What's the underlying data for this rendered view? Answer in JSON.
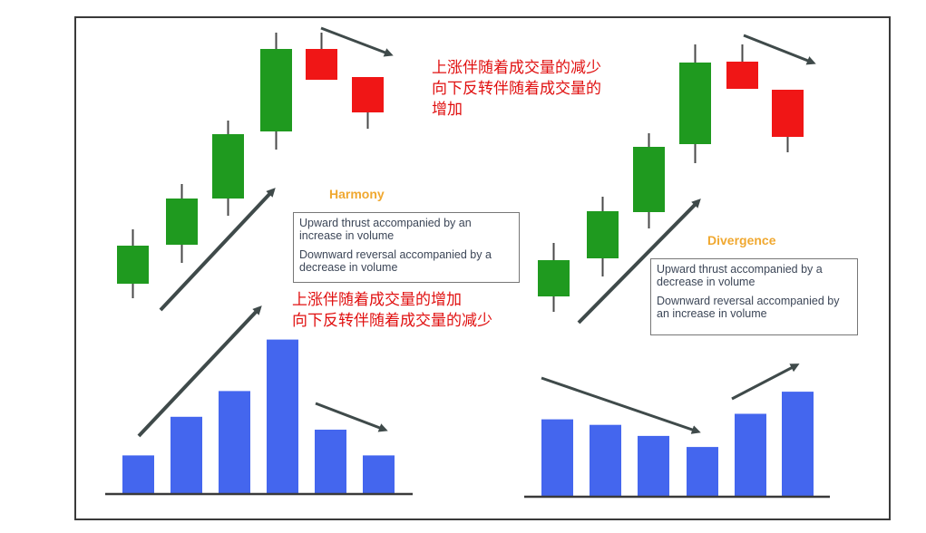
{
  "colors": {
    "bull": "#1f9a1f",
    "bear": "#f01616",
    "volume": "#4466ee",
    "arrow": "#3f4a4a",
    "title": "#f0a830",
    "annotation": "#e01010"
  },
  "harmony": {
    "title": "Harmony",
    "box_lines": [
      "Upward thrust accompanied by an increase in volume",
      "Downward reversal accompanied by a decrease in volume"
    ],
    "candles": [
      {
        "dir": "up"
      },
      {
        "dir": "up"
      },
      {
        "dir": "up"
      },
      {
        "dir": "up"
      },
      {
        "dir": "down"
      },
      {
        "dir": "down"
      }
    ],
    "volumes": [
      3,
      6,
      8,
      12,
      5,
      3
    ],
    "note_lines": [
      "上涨伴随着成交量的增加",
      "向下反转伴随着成交量的减少"
    ]
  },
  "divergence": {
    "title": "Divergence",
    "box_lines": [
      "Upward thrust accompanied by a decrease in volume",
      "Downward reversal accompanied by an increase in volume"
    ],
    "candles": [
      {
        "dir": "up"
      },
      {
        "dir": "up"
      },
      {
        "dir": "up"
      },
      {
        "dir": "up"
      },
      {
        "dir": "down"
      },
      {
        "dir": "down"
      }
    ],
    "volumes": [
      7,
      6.5,
      5.5,
      4.5,
      7.5,
      9.5
    ],
    "note_lines": [
      "上涨伴随着成交量的减少",
      "向下反转伴随着成交量的",
      "增加"
    ]
  }
}
